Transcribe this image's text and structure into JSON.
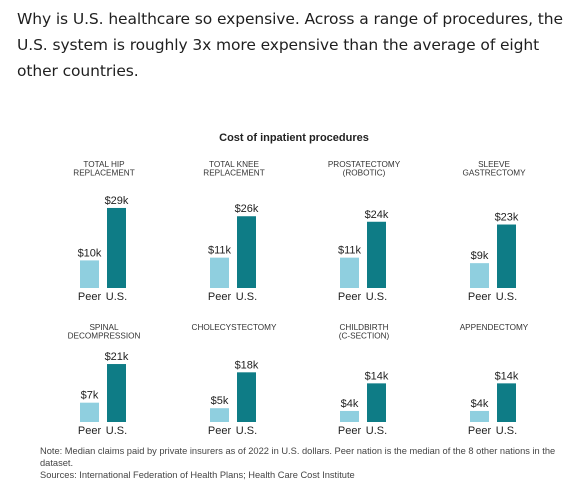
{
  "intro_text": "Why is U.S. healthcare so expensive. Across a range of procedures, the U.S. system is roughly 3x more expensive than the average of eight other countries.",
  "colors": {
    "peer": "#8fcfdf",
    "us": "#0e7c86"
  },
  "chart_data": {
    "type": "bar",
    "title": "Cost of inpatient procedures",
    "series_labels": [
      "Peer",
      "U.S."
    ],
    "units": "USD thousands",
    "panels": [
      {
        "title_lines": [
          "TOTAL HIP",
          "REPLACEMENT"
        ],
        "values": [
          10,
          29
        ],
        "labels": [
          "$10k",
          "$29k"
        ]
      },
      {
        "title_lines": [
          "TOTAL KNEE",
          "REPLACEMENT"
        ],
        "values": [
          11,
          26
        ],
        "labels": [
          "$11k",
          "$26k"
        ]
      },
      {
        "title_lines": [
          "PROSTATECTOMY",
          "(ROBOTIC)"
        ],
        "values": [
          11,
          24
        ],
        "labels": [
          "$11k",
          "$24k"
        ]
      },
      {
        "title_lines": [
          "SLEEVE",
          "GASTRECTOMY"
        ],
        "values": [
          9,
          23
        ],
        "labels": [
          "$9k",
          "$23k"
        ]
      },
      {
        "title_lines": [
          "SPINAL",
          "DECOMPRESSION"
        ],
        "values": [
          7,
          21
        ],
        "labels": [
          "$7k",
          "$21k"
        ]
      },
      {
        "title_lines": [
          "CHOLECYSTECTOMY"
        ],
        "values": [
          5,
          18
        ],
        "labels": [
          "$5k",
          "$18k"
        ]
      },
      {
        "title_lines": [
          "CHILDBIRTH",
          "(C-SECTION)"
        ],
        "values": [
          4,
          14
        ],
        "labels": [
          "$4k",
          "$14k"
        ]
      },
      {
        "title_lines": [
          "APPENDECTOMY"
        ],
        "values": [
          4,
          14
        ],
        "labels": [
          "$4k",
          "$14k"
        ]
      }
    ]
  },
  "notes": {
    "note": "Note: Median claims paid by private insurers as of 2022 in U.S. dollars. Peer nation is the median of the 8 other nations in the dataset.",
    "sources": "Sources: International Federation of Health Plans; Health Care Cost Institute"
  }
}
